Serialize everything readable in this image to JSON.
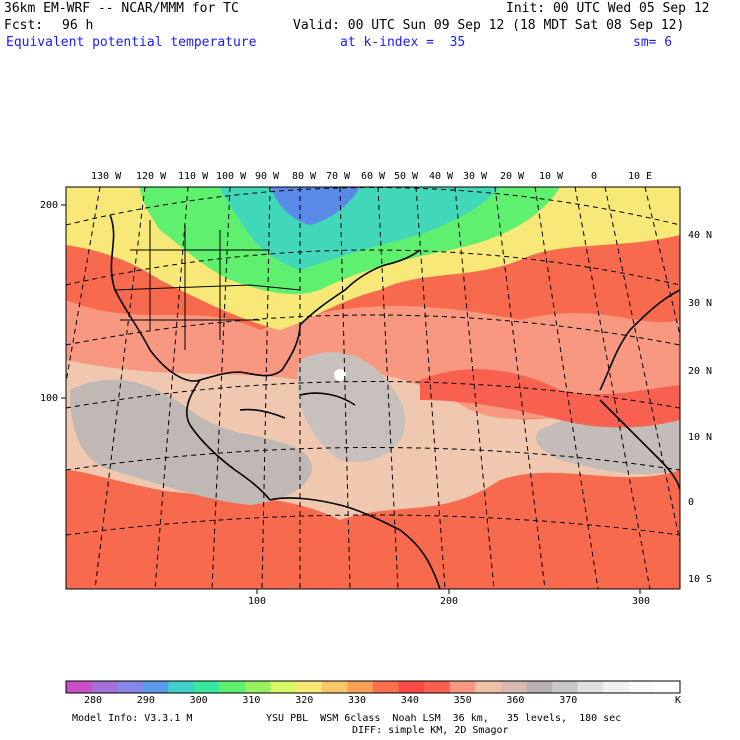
{
  "header": {
    "model": "36km EM-WRF -- NCAR/MMM for TC",
    "init": "Init: 00 UTC Wed 05 Sep 12",
    "fcst_label": "Fcst:",
    "fcst_value": "96 h",
    "valid": "Valid: 00 UTC Sun 09 Sep 12 (18 MDT Sat 08 Sep 12)",
    "field": "Equivalent potential temperature",
    "level": "at k-index =  35",
    "smoothing": "sm= 6"
  },
  "map": {
    "top_lon_labels": [
      "130 W",
      "120 W",
      "110 W",
      "100 W",
      "90 W",
      "80 W",
      "70 W",
      "60 W",
      "50 W",
      "40 W",
      "30 W",
      "20 W",
      "10 W",
      "0",
      "10 E"
    ],
    "right_lat_labels": [
      "40 N",
      "30 N",
      "20 N",
      "10 N",
      "0",
      "10 S"
    ],
    "left_grid_labels": [
      "200",
      "100"
    ],
    "bottom_grid_labels": [
      "100",
      "200",
      "300"
    ]
  },
  "colorbar": {
    "labels": [
      "280",
      "290",
      "300",
      "310",
      "320",
      "330",
      "340",
      "350",
      "360",
      "370"
    ],
    "unit": "K",
    "colors": [
      "#c94fc9",
      "#a770d8",
      "#8a85e8",
      "#5a9ae8",
      "#40d0c8",
      "#38e8a0",
      "#60f070",
      "#98f060",
      "#d8f868",
      "#f8e878",
      "#f8c868",
      "#f8a058",
      "#f87050",
      "#f84848",
      "#f86050",
      "#f89880",
      "#f0c0a8",
      "#d8b8b0",
      "#b8b0b0",
      "#c8c8c8",
      "#e0e0e0",
      "#f0f0f0",
      "#fafafa",
      "#ffffff"
    ]
  },
  "footer": {
    "model_info": "Model Info: V3.3.1 M",
    "physics": "YSU PBL  WSM 6class  Noah LSM  36 km,   35 levels,  180 sec",
    "diff": "DIFF: simple KM, 2D Smagor"
  }
}
